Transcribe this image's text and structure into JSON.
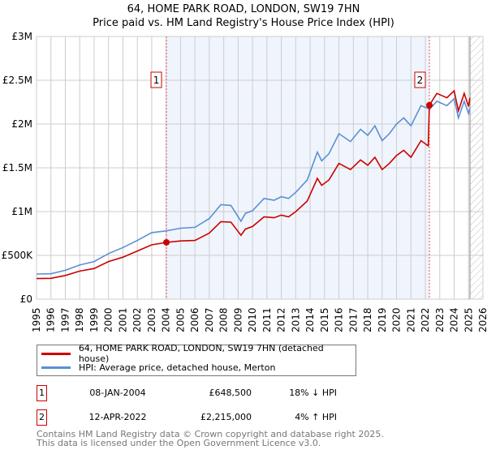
{
  "chart_data": {
    "type": "line",
    "title": "64, HOME PARK ROAD, LONDON, SW19 7HN",
    "subtitle": "Price paid vs. HM Land Registry's House Price Index (HPI)",
    "xlim": [
      1995,
      2026
    ],
    "ylim": [
      0,
      3000000
    ],
    "x_ticks": [
      "1995",
      "1996",
      "1997",
      "1998",
      "1999",
      "2000",
      "2001",
      "2002",
      "2003",
      "2004",
      "2005",
      "2006",
      "2007",
      "2008",
      "2009",
      "2010",
      "2011",
      "2012",
      "2013",
      "2014",
      "2015",
      "2016",
      "2017",
      "2018",
      "2019",
      "2020",
      "2021",
      "2022",
      "2023",
      "2024",
      "2025",
      "2026"
    ],
    "y_ticks": [
      {
        "v": 0,
        "label": "£0"
      },
      {
        "v": 500000,
        "label": "£500K"
      },
      {
        "v": 1000000,
        "label": "£1M"
      },
      {
        "v": 1500000,
        "label": "£1.5M"
      },
      {
        "v": 2000000,
        "label": "£2M"
      },
      {
        "v": 2500000,
        "label": "£2.5M"
      },
      {
        "v": 3000000,
        "label": "£3M"
      }
    ],
    "grid": true,
    "shaded_between_sales": [
      2004.02,
      2022.28
    ],
    "forecast_hatch_from": 2025.1,
    "series": [
      {
        "name": "64, HOME PARK ROAD, LONDON, SW19 7HN (detached house)",
        "color": "#cc0000",
        "x": [
          1995,
          1996,
          1997,
          1998,
          1999,
          2000,
          2001,
          2002,
          2003,
          2004.02,
          2005,
          2006,
          2007,
          2007.8,
          2008.5,
          2009.2,
          2009.5,
          2010,
          2010.8,
          2011.5,
          2012,
          2012.5,
          2013,
          2013.8,
          2014.5,
          2014.8,
          2015.3,
          2016,
          2016.8,
          2017.5,
          2018,
          2018.5,
          2019,
          2019.5,
          2020,
          2020.5,
          2021,
          2021.7,
          2022.2,
          2022.28,
          2022.8,
          2023.5,
          2024,
          2024.3,
          2024.7,
          2025,
          2025.1
        ],
        "y": [
          235000,
          238000,
          270000,
          320000,
          350000,
          430000,
          480000,
          550000,
          620000,
          648500,
          665000,
          670000,
          755000,
          885000,
          880000,
          730000,
          800000,
          830000,
          940000,
          930000,
          960000,
          940000,
          1000000,
          1120000,
          1380000,
          1300000,
          1360000,
          1550000,
          1480000,
          1590000,
          1530000,
          1620000,
          1480000,
          1550000,
          1640000,
          1700000,
          1620000,
          1810000,
          1750000,
          2215000,
          2350000,
          2300000,
          2380000,
          2150000,
          2350000,
          2200000,
          2300000
        ]
      },
      {
        "name": "HPI: Average price, detached house, Merton",
        "color": "#5b8fd4",
        "x": [
          1995,
          1996,
          1997,
          1998,
          1999,
          2000,
          2001,
          2002,
          2003,
          2004,
          2005,
          2006,
          2007,
          2007.8,
          2008.5,
          2009.2,
          2009.5,
          2010,
          2010.8,
          2011.5,
          2012,
          2012.5,
          2013,
          2013.8,
          2014.5,
          2014.8,
          2015.3,
          2016,
          2016.8,
          2017.5,
          2018,
          2018.5,
          2019,
          2019.5,
          2020,
          2020.5,
          2021,
          2021.7,
          2022.3,
          2022.8,
          2023.5,
          2024,
          2024.3,
          2024.7,
          2025,
          2025.1
        ],
        "y": [
          287000,
          290000,
          330000,
          390000,
          430000,
          520000,
          590000,
          670000,
          760000,
          780000,
          810000,
          820000,
          920000,
          1080000,
          1070000,
          890000,
          980000,
          1010000,
          1150000,
          1130000,
          1170000,
          1150000,
          1220000,
          1360000,
          1680000,
          1580000,
          1660000,
          1890000,
          1800000,
          1940000,
          1870000,
          1980000,
          1810000,
          1890000,
          2000000,
          2070000,
          1980000,
          2210000,
          2170000,
          2260000,
          2210000,
          2290000,
          2070000,
          2260000,
          2120000,
          2180000
        ]
      }
    ],
    "annotations": [
      {
        "label": "1",
        "x": 2004.02,
        "y": 648500
      },
      {
        "label": "2",
        "x": 2022.28,
        "y": 2215000
      }
    ]
  },
  "legend": {
    "property": "64, HOME PARK ROAD, LONDON, SW19 7HN (detached house)",
    "hpi": "HPI: Average price, detached house, Merton"
  },
  "sales": [
    {
      "num": "1",
      "date": "08-JAN-2004",
      "price": "£648,500",
      "hpi": "18% ↓ HPI"
    },
    {
      "num": "2",
      "date": "12-APR-2022",
      "price": "£2,215,000",
      "hpi": "4% ↑ HPI"
    }
  ],
  "footer": {
    "line1": "Contains HM Land Registry data © Crown copyright and database right 2025.",
    "line2": "This data is licensed under the Open Government Licence v3.0."
  }
}
